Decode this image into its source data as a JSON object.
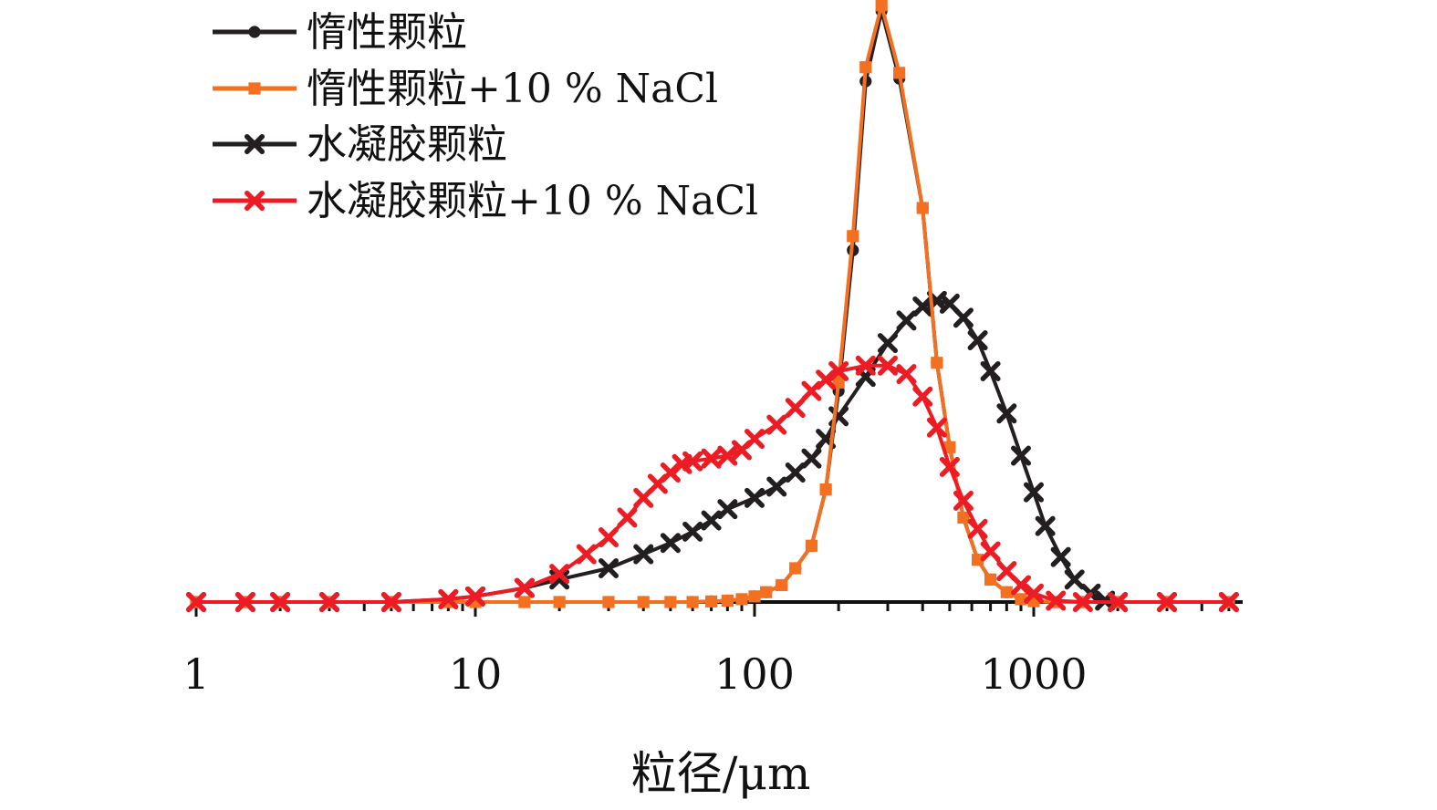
{
  "chart_data": {
    "type": "line",
    "title": "",
    "xlabel": "粒径/μm",
    "ylabel": "",
    "x_scale": "log",
    "xlim": [
      1,
      5000
    ],
    "ylim": [
      0,
      21
    ],
    "grid": false,
    "legend_position": "top-left",
    "x_ticks": [
      {
        "value": 1,
        "label": "1"
      },
      {
        "value": 10,
        "label": "10"
      },
      {
        "value": 100,
        "label": "100"
      },
      {
        "value": 1000,
        "label": "1000"
      }
    ],
    "series": [
      {
        "name": "惰性颗粒",
        "color": "#231f20",
        "marker": "circle",
        "points": [
          [
            1,
            0
          ],
          [
            1.5,
            0
          ],
          [
            2,
            0
          ],
          [
            3,
            0
          ],
          [
            5,
            0
          ],
          [
            8,
            0
          ],
          [
            10,
            0
          ],
          [
            15,
            0
          ],
          [
            20,
            0
          ],
          [
            30,
            0
          ],
          [
            40,
            0
          ],
          [
            50,
            0
          ],
          [
            60,
            0
          ],
          [
            70,
            0.02
          ],
          [
            80,
            0.05
          ],
          [
            90,
            0.1
          ],
          [
            100,
            0.2
          ],
          [
            110,
            0.35
          ],
          [
            125,
            0.6
          ],
          [
            140,
            1.2
          ],
          [
            160,
            2
          ],
          [
            180,
            4
          ],
          [
            200,
            7.5
          ],
          [
            225,
            12.5
          ],
          [
            250,
            18.5
          ],
          [
            285,
            21
          ],
          [
            330,
            18.6
          ],
          [
            400,
            14
          ],
          [
            450,
            8.5
          ],
          [
            500,
            5.5
          ],
          [
            560,
            3
          ],
          [
            630,
            1.5
          ],
          [
            700,
            0.8
          ],
          [
            800,
            0.35
          ],
          [
            900,
            0.1
          ],
          [
            1000,
            0.03
          ],
          [
            1200,
            0
          ],
          [
            1500,
            0
          ],
          [
            2000,
            0
          ],
          [
            3000,
            0
          ],
          [
            5000,
            0
          ]
        ]
      },
      {
        "name": "惰性颗粒+10 % NaCl",
        "color": "#f37021",
        "marker": "square",
        "points": [
          [
            1,
            0
          ],
          [
            1.5,
            0
          ],
          [
            2,
            0
          ],
          [
            3,
            0
          ],
          [
            5,
            0
          ],
          [
            8,
            0
          ],
          [
            10,
            0
          ],
          [
            15,
            0
          ],
          [
            20,
            0
          ],
          [
            30,
            0
          ],
          [
            40,
            0
          ],
          [
            50,
            0
          ],
          [
            60,
            0
          ],
          [
            70,
            0.02
          ],
          [
            80,
            0.05
          ],
          [
            90,
            0.1
          ],
          [
            100,
            0.2
          ],
          [
            110,
            0.35
          ],
          [
            125,
            0.6
          ],
          [
            140,
            1.2
          ],
          [
            160,
            2
          ],
          [
            180,
            4
          ],
          [
            200,
            7.8
          ],
          [
            225,
            13
          ],
          [
            250,
            19
          ],
          [
            285,
            21.2
          ],
          [
            330,
            18.8
          ],
          [
            400,
            14
          ],
          [
            450,
            8.5
          ],
          [
            500,
            5.5
          ],
          [
            560,
            3
          ],
          [
            630,
            1.5
          ],
          [
            700,
            0.8
          ],
          [
            800,
            0.35
          ],
          [
            900,
            0.1
          ],
          [
            1000,
            0.03
          ],
          [
            1200,
            0
          ],
          [
            1500,
            0
          ],
          [
            2000,
            0
          ],
          [
            3000,
            0
          ],
          [
            5000,
            0
          ]
        ]
      },
      {
        "name": "水凝胶颗粒",
        "color": "#231f20",
        "marker": "x",
        "points": [
          [
            1,
            0
          ],
          [
            1.5,
            0
          ],
          [
            2,
            0
          ],
          [
            3,
            0
          ],
          [
            5,
            0
          ],
          [
            8,
            0.1
          ],
          [
            10,
            0.2
          ],
          [
            15,
            0.5
          ],
          [
            20,
            0.8
          ],
          [
            30,
            1.2
          ],
          [
            40,
            1.7
          ],
          [
            50,
            2.1
          ],
          [
            60,
            2.5
          ],
          [
            70,
            2.9
          ],
          [
            80,
            3.3
          ],
          [
            100,
            3.7
          ],
          [
            120,
            4.1
          ],
          [
            140,
            4.6
          ],
          [
            160,
            5.1
          ],
          [
            180,
            5.8
          ],
          [
            200,
            6.6
          ],
          [
            250,
            8
          ],
          [
            300,
            9.2
          ],
          [
            350,
            10
          ],
          [
            400,
            10.5
          ],
          [
            450,
            10.7
          ],
          [
            500,
            10.6
          ],
          [
            560,
            10.1
          ],
          [
            630,
            9.3
          ],
          [
            700,
            8.2
          ],
          [
            800,
            6.7
          ],
          [
            900,
            5.2
          ],
          [
            1000,
            3.9
          ],
          [
            1100,
            2.7
          ],
          [
            1250,
            1.6
          ],
          [
            1400,
            0.8
          ],
          [
            1600,
            0.3
          ],
          [
            1800,
            0.05
          ],
          [
            2000,
            0
          ],
          [
            3000,
            0
          ],
          [
            5000,
            0
          ]
        ]
      },
      {
        "name": "水凝胶颗粒+10 % NaCl",
        "color": "#ed1c24",
        "marker": "x",
        "points": [
          [
            1,
            0
          ],
          [
            1.5,
            0
          ],
          [
            2,
            0
          ],
          [
            3,
            0
          ],
          [
            5,
            0
          ],
          [
            8,
            0.1
          ],
          [
            10,
            0.2
          ],
          [
            15,
            0.5
          ],
          [
            20,
            1
          ],
          [
            25,
            1.7
          ],
          [
            30,
            2.3
          ],
          [
            35,
            3
          ],
          [
            40,
            3.7
          ],
          [
            45,
            4.2
          ],
          [
            50,
            4.6
          ],
          [
            55,
            4.9
          ],
          [
            60,
            5
          ],
          [
            70,
            5.1
          ],
          [
            80,
            5.2
          ],
          [
            90,
            5.4
          ],
          [
            100,
            5.8
          ],
          [
            120,
            6.3
          ],
          [
            140,
            6.9
          ],
          [
            160,
            7.5
          ],
          [
            180,
            7.9
          ],
          [
            200,
            8.2
          ],
          [
            250,
            8.4
          ],
          [
            300,
            8.4
          ],
          [
            350,
            8.1
          ],
          [
            400,
            7.3
          ],
          [
            450,
            6.2
          ],
          [
            500,
            4.8
          ],
          [
            560,
            3.6
          ],
          [
            630,
            2.6
          ],
          [
            700,
            1.8
          ],
          [
            800,
            1.1
          ],
          [
            900,
            0.6
          ],
          [
            1000,
            0.3
          ],
          [
            1200,
            0.05
          ],
          [
            1500,
            0
          ],
          [
            2000,
            0
          ],
          [
            3000,
            0
          ],
          [
            5000,
            0
          ]
        ]
      }
    ]
  }
}
